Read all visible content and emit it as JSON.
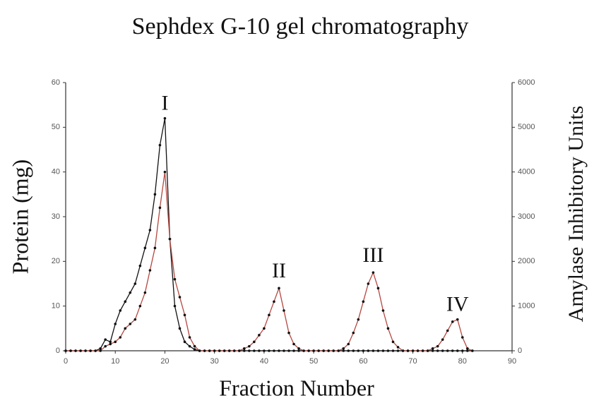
{
  "chart_data": {
    "type": "line",
    "title": "Sephdex G-10 gel chromatography",
    "x_label": "Fraction Number",
    "y_label": "Protein (mg)",
    "y2_label": "Amylase Inhibitory Units",
    "x": [
      0,
      1,
      2,
      3,
      4,
      5,
      6,
      7,
      8,
      9,
      10,
      11,
      12,
      13,
      14,
      15,
      16,
      17,
      18,
      19,
      20,
      21,
      22,
      23,
      24,
      25,
      26,
      27,
      28,
      29,
      30,
      31,
      32,
      33,
      34,
      35,
      36,
      37,
      38,
      39,
      40,
      41,
      42,
      43,
      44,
      45,
      46,
      47,
      48,
      49,
      50,
      51,
      52,
      53,
      54,
      55,
      56,
      57,
      58,
      59,
      60,
      61,
      62,
      63,
      64,
      65,
      66,
      67,
      68,
      69,
      70,
      71,
      72,
      73,
      74,
      75,
      76,
      77,
      78,
      79,
      80,
      81,
      82
    ],
    "series": [
      {
        "color": "#111111",
        "values": [
          0,
          0,
          0,
          0,
          0,
          0,
          0,
          0.5,
          2.5,
          2,
          6,
          9,
          11,
          13,
          15,
          19,
          23,
          27,
          35,
          46,
          52,
          25,
          10,
          5,
          2,
          1,
          0.3,
          0,
          0,
          0,
          0,
          0,
          0,
          0,
          0,
          0,
          0,
          0,
          0,
          0,
          0,
          0,
          0,
          0,
          0,
          0,
          0,
          0,
          0,
          0,
          0,
          0,
          0,
          0,
          0,
          0,
          0,
          0,
          0,
          0,
          0,
          0,
          0,
          0,
          0,
          0,
          0,
          0,
          0,
          0,
          0,
          0,
          0,
          0,
          0,
          0,
          0,
          0,
          0,
          0,
          0,
          0,
          0
        ]
      },
      {
        "color": "#b5473f",
        "axis": "y2",
        "values": [
          0,
          0,
          0,
          0,
          0,
          0,
          0,
          0,
          100,
          150,
          200,
          300,
          500,
          600,
          700,
          1000,
          1300,
          1800,
          2300,
          3200,
          4000,
          2500,
          1600,
          1200,
          800,
          300,
          100,
          0,
          0,
          0,
          0,
          0,
          0,
          0,
          0,
          0,
          50,
          100,
          200,
          350,
          500,
          800,
          1100,
          1400,
          900,
          400,
          150,
          50,
          0,
          0,
          0,
          0,
          0,
          0,
          0,
          0,
          50,
          150,
          400,
          700,
          1100,
          1500,
          1750,
          1400,
          900,
          500,
          200,
          80,
          0,
          0,
          0,
          0,
          0,
          0,
          50,
          100,
          250,
          450,
          650,
          700,
          300,
          50,
          0
        ]
      }
    ],
    "annotations": [
      {
        "text": "I",
        "x": 20,
        "y": 55
      },
      {
        "text": "II",
        "x": 43,
        "y": 17.5
      },
      {
        "text": "III",
        "x": 62,
        "y": 21
      },
      {
        "text": "IV",
        "x": 79,
        "y": 10
      }
    ],
    "xlim": [
      0,
      90
    ],
    "xticks": [
      0,
      10,
      20,
      30,
      40,
      50,
      60,
      70,
      80,
      90
    ],
    "ylim": [
      0,
      60
    ],
    "yticks": [
      0,
      10,
      20,
      30,
      40,
      50,
      60
    ],
    "y2lim": [
      0,
      6000
    ],
    "y2ticks": [
      0,
      1000,
      2000,
      3000,
      4000,
      5000,
      6000
    ]
  }
}
